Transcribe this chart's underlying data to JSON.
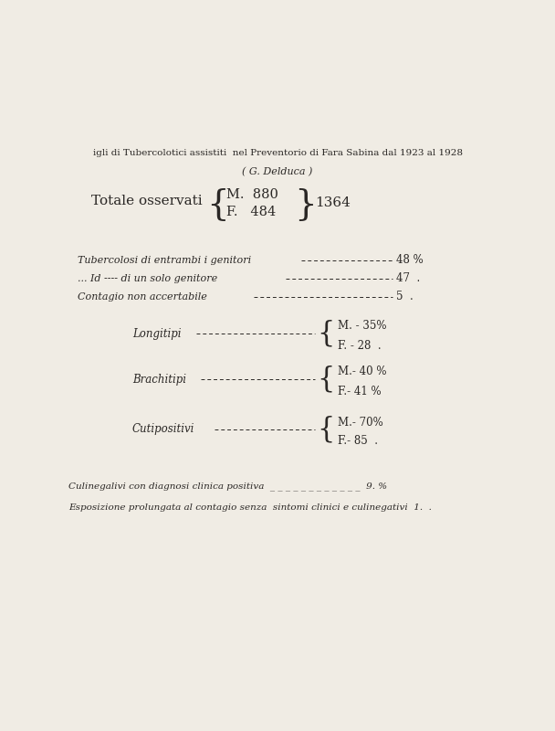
{
  "background_color": "#f0ece4",
  "title_line1": "igli di Tubercolotici assistiti  nel Preventorio di Fara Sabina dal 1923 al 1928",
  "title_line2": "( G. Delduca )",
  "totale_label": "Totale osservati",
  "totale_m": "M.  880",
  "totale_f": "F.   484",
  "totale_total": "1364",
  "text_color": "#2a2725",
  "row1_label": "Tubercolosi di entrambi i genitori",
  "row1_value": "48 %",
  "row2_label": "... Id ---- di un solo genitore",
  "row2_value": "47  .",
  "row3_label": "Contagio non accertabile",
  "row3_value": "5  .",
  "longitipi_label": "Longitipi",
  "longitipi_m": "M. - 35%",
  "longitipi_f": "F. - 28  .",
  "brachitipi_label": "Brachitipi",
  "brachitipi_m": "M.- 40 %",
  "brachitipi_f": "F.- 41 %",
  "cutipositivi_label": "Cutipositivi",
  "cutipositivi_m": "M.- 70%",
  "cutipositivi_f": "F.- 85  .",
  "footer1": "Culinegalivi con diagnosi clinica positiva  _ _ _ _ _ _ _ _ _ _ _ _  9. %",
  "footer2": "Esposizione prolungata al contagio senza  sintomi clinici e culinegativi  1.  ."
}
